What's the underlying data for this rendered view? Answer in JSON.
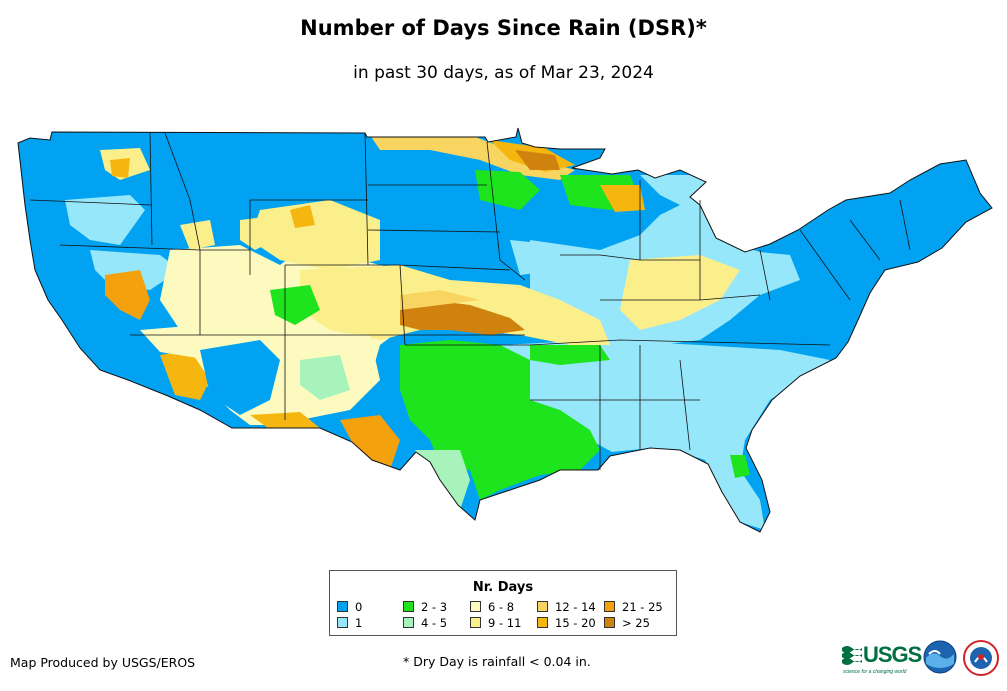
{
  "title": "Number of Days Since Rain (DSR)*",
  "subtitle": "in past 30 days, as of Mar 23, 2024",
  "legend": {
    "title": "Nr. Days",
    "items": [
      {
        "label": "0",
        "color": "#00a2f1"
      },
      {
        "label": "1",
        "color": "#96e7fa"
      },
      {
        "label": "2 - 3",
        "color": "#1de41d"
      },
      {
        "label": "4 - 5",
        "color": "#a8f3bc"
      },
      {
        "label": "6 - 8",
        "color": "#fdfabf"
      },
      {
        "label": "9 - 11",
        "color": "#fbef8c"
      },
      {
        "label": "12 - 14",
        "color": "#f7d560"
      },
      {
        "label": "15 - 20",
        "color": "#f6b610"
      },
      {
        "label": "21 - 25",
        "color": "#f3a10c"
      },
      {
        "label": "> 25",
        "color": "#cf820e"
      }
    ]
  },
  "footer": {
    "credit": "Map Produced by USGS/EROS",
    "note": "* Dry Day is rainfall < 0.04 in."
  },
  "logos": {
    "usgs_text": "USGS",
    "usgs_tagline": "science for a changing world",
    "noaa_icon": "noaa-logo-icon",
    "nws_icon": "nws-logo-icon"
  }
}
